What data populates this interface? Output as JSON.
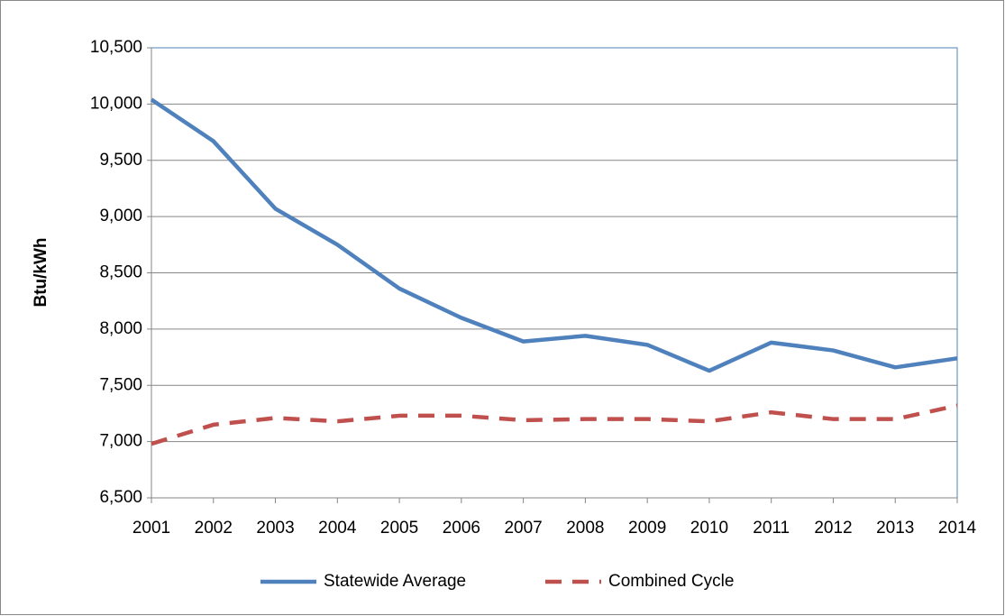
{
  "chart_data": {
    "type": "line",
    "x": [
      2001,
      2002,
      2003,
      2004,
      2005,
      2006,
      2007,
      2008,
      2009,
      2010,
      2011,
      2012,
      2013,
      2014
    ],
    "xlim": [
      2001,
      2014
    ],
    "y_label": "Btu/kWh",
    "ylim": [
      6500,
      10500
    ],
    "yticks": [
      {
        "value": 6500,
        "label": "6,500"
      },
      {
        "value": 7000,
        "label": "7,000"
      },
      {
        "value": 7500,
        "label": "7,500"
      },
      {
        "value": 8000,
        "label": "8,000"
      },
      {
        "value": 8500,
        "label": "8,500"
      },
      {
        "value": 9000,
        "label": "9,000"
      },
      {
        "value": 9500,
        "label": "9,500"
      },
      {
        "value": 10000,
        "label": "10,000"
      },
      {
        "value": 10500,
        "label": "10,500"
      }
    ],
    "grid": true,
    "legend": "bottom",
    "series": [
      {
        "name": "Statewide Average",
        "color": "#4f81bd",
        "dash": false,
        "values": [
          10040,
          9670,
          9070,
          8750,
          8360,
          8100,
          7890,
          7940,
          7860,
          7630,
          7880,
          7810,
          7660,
          7740
        ]
      },
      {
        "name": "Combined Cycle",
        "color": "#c0504d",
        "dash": true,
        "values": [
          6980,
          7150,
          7210,
          7180,
          7230,
          7230,
          7190,
          7200,
          7200,
          7180,
          7260,
          7200,
          7200,
          7320
        ]
      }
    ]
  }
}
